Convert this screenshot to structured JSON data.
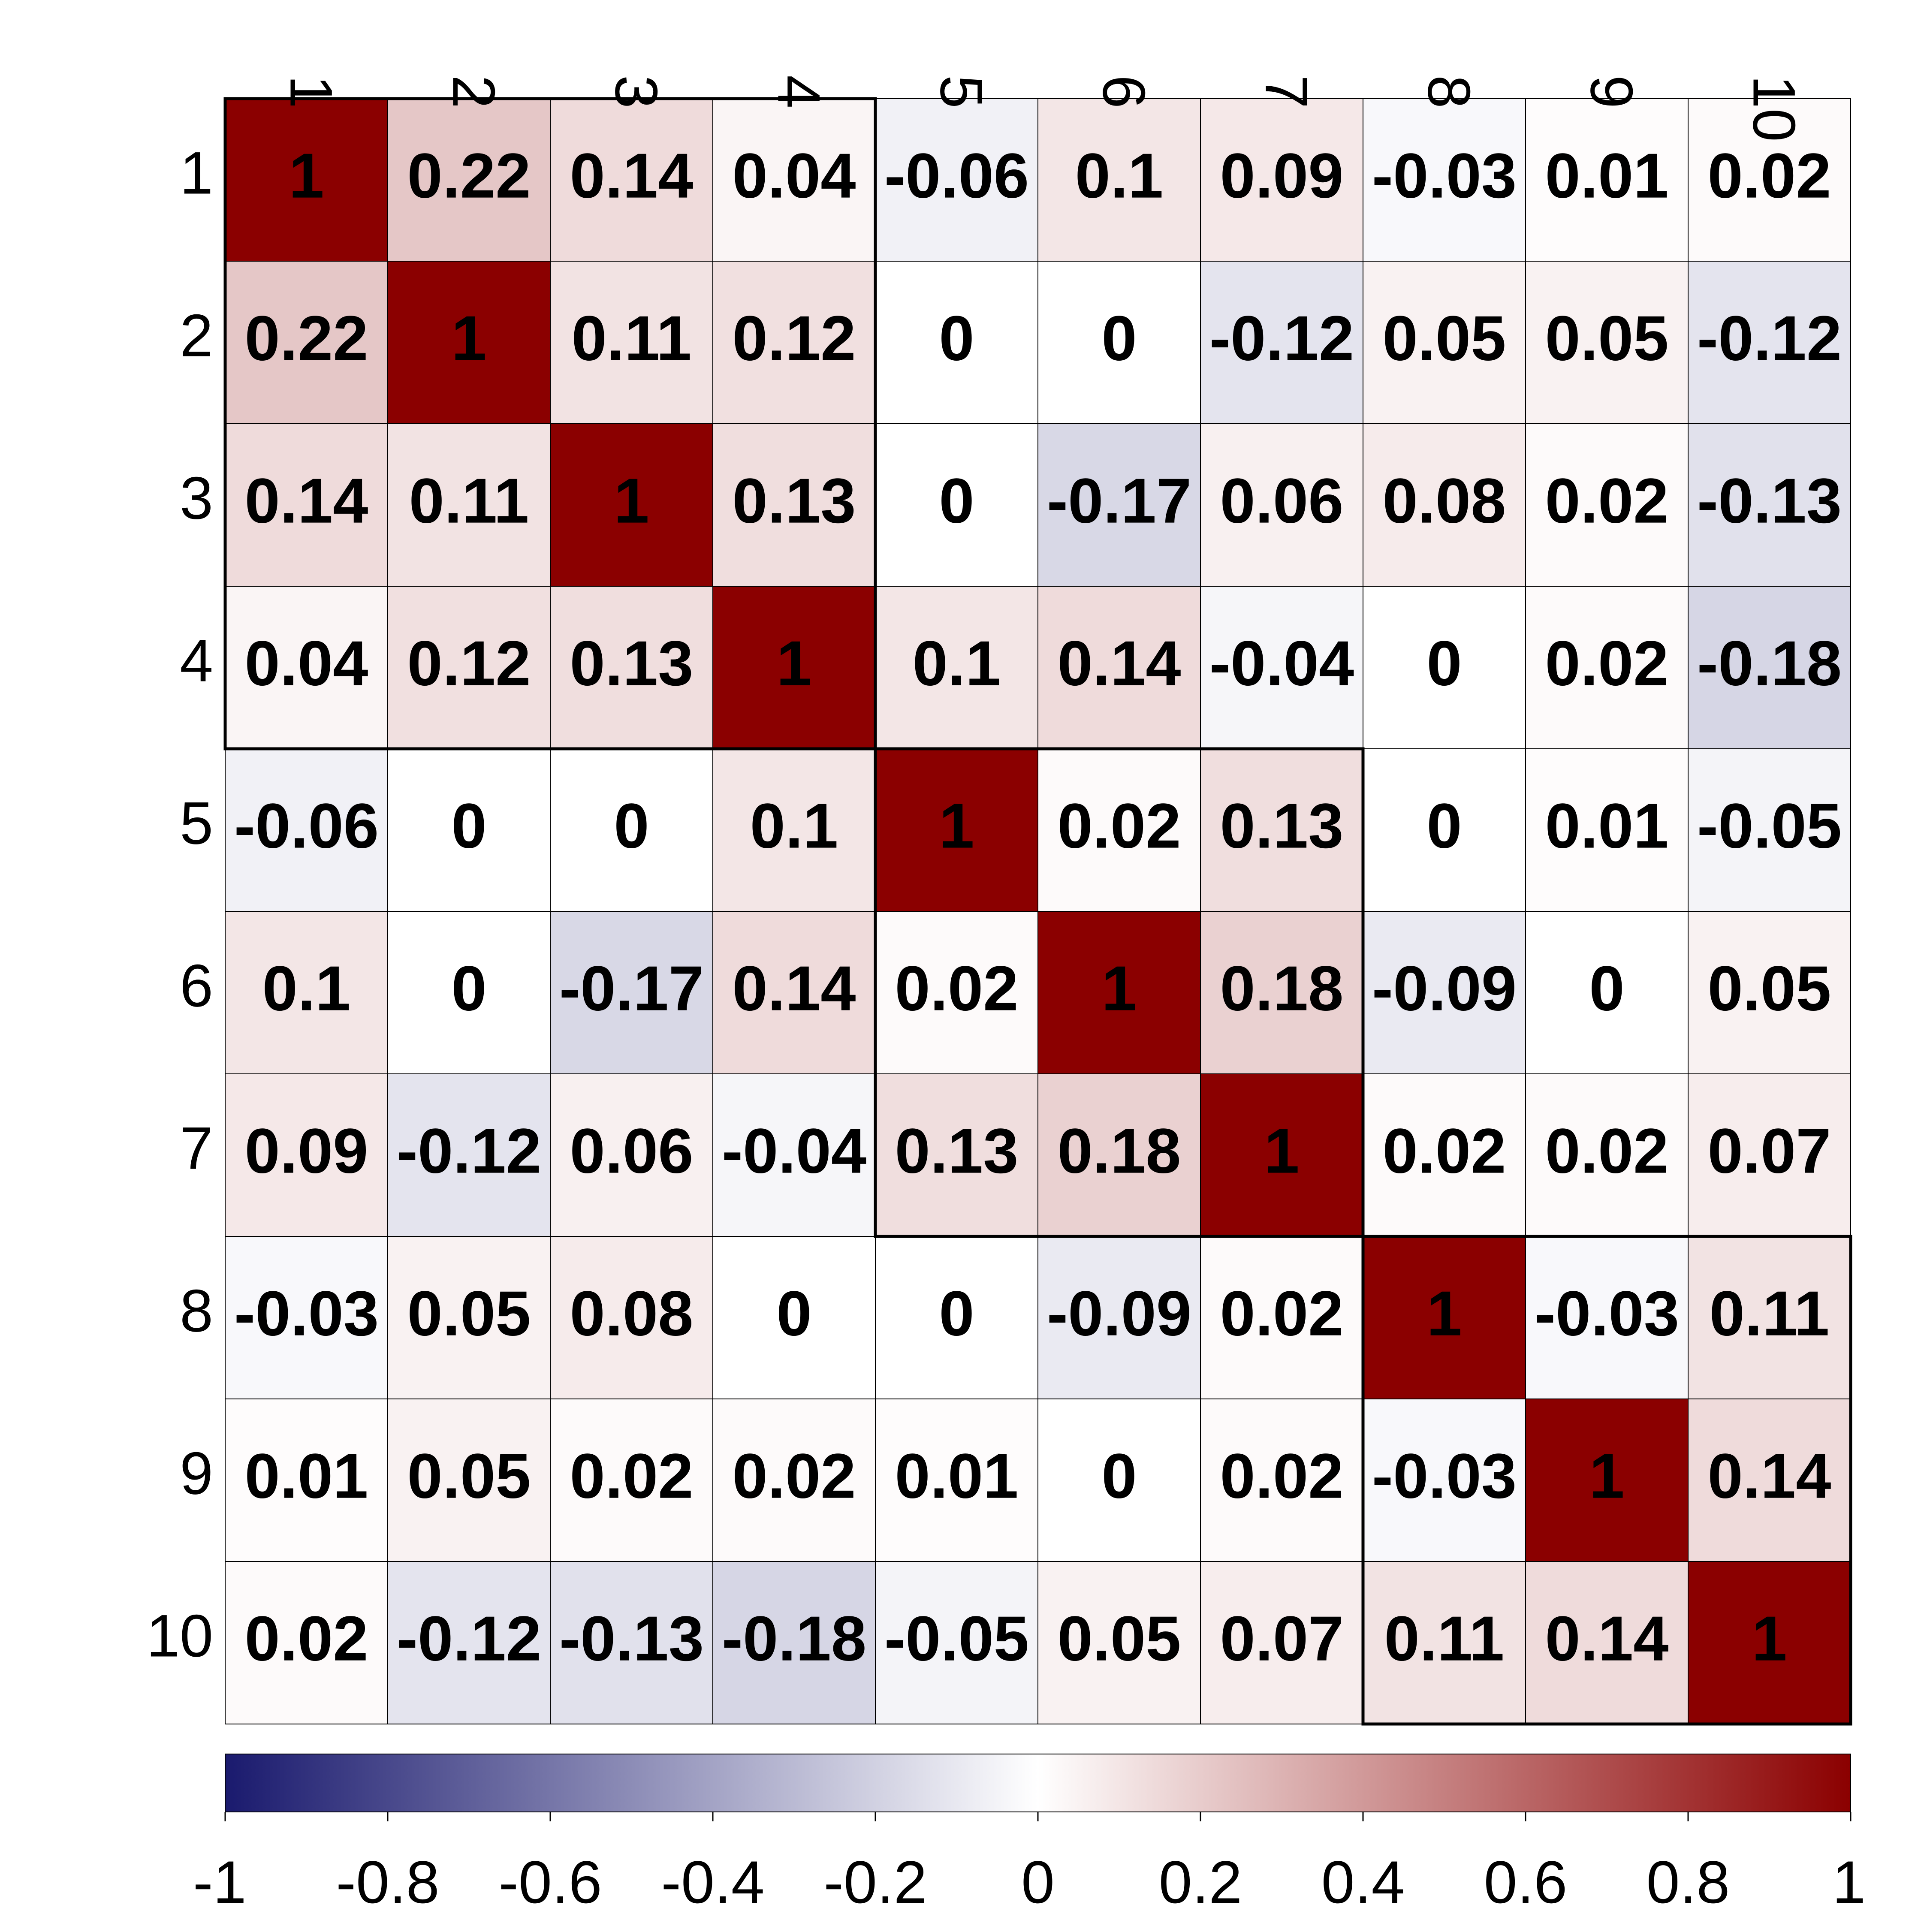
{
  "chart_data": {
    "type": "heatmap",
    "row_labels": [
      "1",
      "2",
      "3",
      "4",
      "5",
      "6",
      "7",
      "8",
      "9",
      "10"
    ],
    "col_labels": [
      "1",
      "2",
      "3",
      "4",
      "5",
      "6",
      "7",
      "8",
      "9",
      "10"
    ],
    "values": [
      [
        1,
        0.22,
        0.14,
        0.04,
        -0.06,
        0.1,
        0.09,
        -0.03,
        0.01,
        0.02
      ],
      [
        0.22,
        1,
        0.11,
        0.12,
        0,
        0,
        -0.12,
        0.05,
        0.05,
        -0.12
      ],
      [
        0.14,
        0.11,
        1,
        0.13,
        0,
        -0.17,
        0.06,
        0.08,
        0.02,
        -0.13
      ],
      [
        0.04,
        0.12,
        0.13,
        1,
        0.1,
        0.14,
        -0.04,
        0,
        0.02,
        -0.18
      ],
      [
        -0.06,
        0,
        0,
        0.1,
        1,
        0.02,
        0.13,
        0,
        0.01,
        -0.05
      ],
      [
        0.1,
        0,
        -0.17,
        0.14,
        0.02,
        1,
        0.18,
        -0.09,
        0,
        0.05
      ],
      [
        0.09,
        -0.12,
        0.06,
        -0.04,
        0.13,
        0.18,
        1,
        0.02,
        0.02,
        0.07
      ],
      [
        -0.03,
        0.05,
        0.08,
        0,
        0,
        -0.09,
        0.02,
        1,
        -0.03,
        0.11
      ],
      [
        0.01,
        0.05,
        0.02,
        0.02,
        0.01,
        0,
        0.02,
        -0.03,
        1,
        0.14
      ],
      [
        0.02,
        -0.12,
        -0.13,
        -0.18,
        -0.05,
        0.05,
        0.07,
        0.11,
        0.14,
        1
      ]
    ],
    "clusters": [
      [
        1,
        4
      ],
      [
        5,
        7
      ],
      [
        8,
        10
      ]
    ],
    "colorbar": {
      "range": [
        -1,
        1
      ],
      "ticks": [
        "-1",
        "-0.8",
        "-0.6",
        "-0.4",
        "-0.2",
        "0",
        "0.2",
        "0.4",
        "0.6",
        "0.8",
        "1"
      ],
      "colors": {
        "low": "#1A1A6E",
        "mid": "#FFFFFF",
        "high": "#8B0000"
      }
    },
    "legend": "bottom",
    "grid": true
  }
}
